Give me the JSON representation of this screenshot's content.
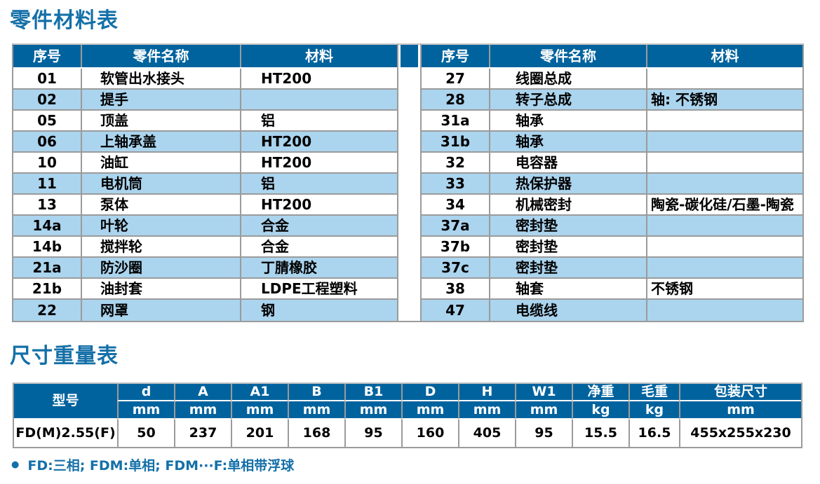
{
  "titles": {
    "parts": "零件材料表",
    "dims": "尺寸重量表"
  },
  "colors": {
    "header_blue": "#00639e",
    "row_light_blue": "#abd4ee",
    "title_blue": "#1470a8",
    "border_gray": "#9b9b9b"
  },
  "parts": {
    "headers": {
      "no": "序号",
      "name": "零件名称",
      "material": "材料"
    },
    "left": [
      {
        "no": "01",
        "name": "软管出水接头",
        "material": "HT200"
      },
      {
        "no": "02",
        "name": "提手",
        "material": ""
      },
      {
        "no": "05",
        "name": "顶盖",
        "material": "铝"
      },
      {
        "no": "06",
        "name": "上轴承盖",
        "material": "HT200"
      },
      {
        "no": "10",
        "name": "油缸",
        "material": "HT200"
      },
      {
        "no": "11",
        "name": "电机筒",
        "material": "铝"
      },
      {
        "no": "13",
        "name": "泵体",
        "material": "HT200"
      },
      {
        "no": "14a",
        "name": "叶轮",
        "material": "合金"
      },
      {
        "no": "14b",
        "name": "搅拌轮",
        "material": "合金"
      },
      {
        "no": "21a",
        "name": "防沙圈",
        "material": "丁腈橡胶"
      },
      {
        "no": "21b",
        "name": "油封套",
        "material": "LDPE工程塑料"
      },
      {
        "no": "22",
        "name": "网罩",
        "material": "钢"
      }
    ],
    "right": [
      {
        "no": "27",
        "name": "线圈总成",
        "material": ""
      },
      {
        "no": "28",
        "name": "转子总成",
        "material": "轴: 不锈钢"
      },
      {
        "no": "31a",
        "name": "轴承",
        "material": ""
      },
      {
        "no": "31b",
        "name": "轴承",
        "material": ""
      },
      {
        "no": "32",
        "name": "电容器",
        "material": ""
      },
      {
        "no": "33",
        "name": "热保护器",
        "material": ""
      },
      {
        "no": "34",
        "name": "机械密封",
        "material": "陶瓷-碳化硅/石墨-陶瓷"
      },
      {
        "no": "37a",
        "name": "密封垫",
        "material": ""
      },
      {
        "no": "37b",
        "name": "密封垫",
        "material": ""
      },
      {
        "no": "37c",
        "name": "密封垫",
        "material": ""
      },
      {
        "no": "38",
        "name": "轴套",
        "material": "不锈钢"
      },
      {
        "no": "47",
        "name": "电缆线",
        "material": ""
      }
    ]
  },
  "dims": {
    "model_header": "型号",
    "columns": [
      {
        "letter": "d",
        "unit": "mm"
      },
      {
        "letter": "A",
        "unit": "mm"
      },
      {
        "letter": "A1",
        "unit": "mm"
      },
      {
        "letter": "B",
        "unit": "mm"
      },
      {
        "letter": "B1",
        "unit": "mm"
      },
      {
        "letter": "D",
        "unit": "mm"
      },
      {
        "letter": "H",
        "unit": "mm"
      },
      {
        "letter": "W1",
        "unit": "mm"
      },
      {
        "letter": "净重",
        "unit": "kg"
      },
      {
        "letter": "毛重",
        "unit": "kg"
      },
      {
        "letter": "包装尺寸",
        "unit": "mm"
      }
    ],
    "row": {
      "model": "FD(M)2.55(F)",
      "values": [
        "50",
        "237",
        "201",
        "168",
        "95",
        "160",
        "405",
        "95",
        "15.5",
        "16.5",
        "455x255x230"
      ]
    }
  },
  "footnote": {
    "bullet": "●",
    "text": "FD:三相; FDM:单相; FDM···F:单相带浮球"
  }
}
